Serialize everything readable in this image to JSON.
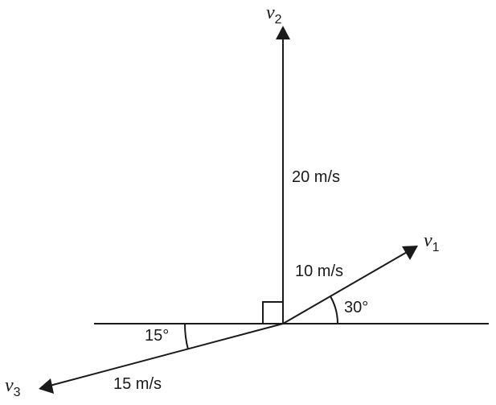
{
  "vectors": [
    {
      "symbol": "v",
      "subscript": "1",
      "magnitude": "10 m/s",
      "angle": "30°"
    },
    {
      "symbol": "v",
      "subscript": "2",
      "magnitude": "20 m/s"
    },
    {
      "symbol": "v",
      "subscript": "3",
      "magnitude": "15 m/s",
      "angle": "15°"
    }
  ]
}
